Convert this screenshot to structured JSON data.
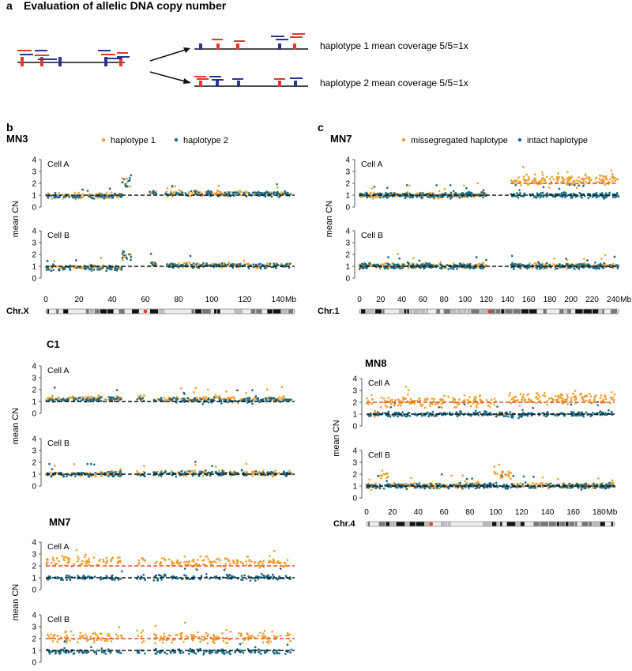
{
  "title": "Evaluation of allelic DNA copy number",
  "panels": {
    "a": "a",
    "b": "b",
    "c": "c"
  },
  "colors": {
    "orange": "#f0a030",
    "teal": "#1c6b86",
    "red": "#e03a2a",
    "blue": "#2b3590",
    "dash_black": "#111111",
    "dash_red": "#e0502a"
  },
  "schematic": {
    "haplotype1_text": "haplotype 1 mean coverage  5/5=1x",
    "haplotype2_text": "haplotype 2 mean coverage  5/5=1x"
  },
  "legends": {
    "b": [
      "haplotype 1",
      "haplotype 2"
    ],
    "c": [
      "missegregated haplotype",
      "intact haplotype"
    ]
  },
  "chart_data": [
    {
      "type": "scatter",
      "panel": "b",
      "sample": "MN3",
      "chromosome": "Chr.X",
      "xlabel": "Mb",
      "ylabel": "mean CN",
      "xlim": [
        0,
        150
      ],
      "xticks": [
        0,
        20,
        40,
        60,
        80,
        100,
        120,
        140
      ],
      "yticks": [
        0,
        1,
        2,
        3,
        4
      ],
      "ylim": [
        0,
        4
      ],
      "cells": [
        {
          "name": "Cell A",
          "reference_lines": [
            {
              "y": 1,
              "color": "black"
            }
          ],
          "series": [
            {
              "name": "haplotype 1",
              "segments": [
                [
                  0,
                  46,
                  0.95
                ],
                [
                  46,
                  52,
                  2.0
                ],
                [
                  62,
                  67,
                  1.2
                ],
                [
                  72,
                  148,
                  1.15
                ]
              ]
            },
            {
              "name": "haplotype 2",
              "segments": [
                [
                  0,
                  46,
                  0.9
                ],
                [
                  46,
                  52,
                  2.1
                ],
                [
                  62,
                  67,
                  1.2
                ],
                [
                  72,
                  148,
                  1.1
                ]
              ]
            }
          ]
        },
        {
          "name": "Cell B",
          "reference_lines": [
            {
              "y": 1,
              "color": "black"
            }
          ],
          "series": [
            {
              "name": "haplotype 1",
              "segments": [
                [
                  0,
                  46,
                  0.9
                ],
                [
                  46,
                  52,
                  1.9
                ],
                [
                  62,
                  67,
                  1.2
                ],
                [
                  72,
                  148,
                  1.1
                ]
              ]
            },
            {
              "name": "haplotype 2",
              "segments": [
                [
                  0,
                  46,
                  0.85
                ],
                [
                  46,
                  52,
                  1.9
                ],
                [
                  62,
                  67,
                  1.2
                ],
                [
                  72,
                  148,
                  1.05
                ]
              ]
            }
          ]
        }
      ]
    },
    {
      "type": "scatter",
      "panel": "b",
      "sample": "C1",
      "chromosome": "Chr.X",
      "xlabel": "Mb",
      "ylabel": "mean CN",
      "xlim": [
        0,
        150
      ],
      "yticks": [
        0,
        1,
        2,
        3,
        4
      ],
      "ylim": [
        0,
        4
      ],
      "cells": [
        {
          "name": "Cell A",
          "reference_lines": [
            {
              "y": 1,
              "color": "black"
            }
          ],
          "series": [
            {
              "name": "haplotype 1",
              "segments": [
                [
                  0,
                  46,
                  1.3
                ],
                [
                  55,
                  60,
                  1.3
                ],
                [
                  65,
                  148,
                  1.2
                ]
              ]
            },
            {
              "name": "haplotype 2",
              "segments": [
                [
                  0,
                  46,
                  1.2
                ],
                [
                  55,
                  60,
                  1.2
                ],
                [
                  65,
                  148,
                  1.1
                ]
              ]
            }
          ]
        },
        {
          "name": "Cell B",
          "reference_lines": [
            {
              "y": 1,
              "color": "black"
            }
          ],
          "series": [
            {
              "name": "haplotype 1",
              "segments": [
                [
                  0,
                  46,
                  1.0
                ],
                [
                  55,
                  60,
                  1.1
                ],
                [
                  65,
                  148,
                  1.1
                ]
              ]
            },
            {
              "name": "haplotype 2",
              "segments": [
                [
                  0,
                  46,
                  1.0
                ],
                [
                  55,
                  60,
                  1.0
                ],
                [
                  65,
                  148,
                  1.05
                ]
              ]
            }
          ]
        }
      ]
    },
    {
      "type": "scatter",
      "panel": "b",
      "sample": "MN7",
      "chromosome": "Chr.X",
      "xlabel": "Mb",
      "ylabel": "mean CN",
      "xlim": [
        0,
        150
      ],
      "yticks": [
        0,
        1,
        2,
        3,
        4
      ],
      "ylim": [
        0,
        4
      ],
      "cells": [
        {
          "name": "Cell A",
          "reference_lines": [
            {
              "y": 2,
              "color": "red"
            },
            {
              "y": 1,
              "color": "black"
            }
          ],
          "series": [
            {
              "name": "haplotype 1",
              "segments": [
                [
                  0,
                  46,
                  2.4
                ],
                [
                  55,
                  60,
                  2.4
                ],
                [
                  65,
                  148,
                  2.3
                ]
              ]
            },
            {
              "name": "haplotype 2",
              "segments": [
                [
                  0,
                  46,
                  1.0
                ],
                [
                  55,
                  60,
                  1.0
                ],
                [
                  65,
                  148,
                  1.0
                ]
              ]
            }
          ]
        },
        {
          "name": "Cell B",
          "reference_lines": [
            {
              "y": 2,
              "color": "red"
            },
            {
              "y": 1,
              "color": "black"
            }
          ],
          "series": [
            {
              "name": "haplotype 1",
              "segments": [
                [
                  0,
                  46,
                  2.1
                ],
                [
                  55,
                  60,
                  2.1
                ],
                [
                  65,
                  148,
                  2.1
                ]
              ]
            },
            {
              "name": "haplotype 2",
              "segments": [
                [
                  0,
                  46,
                  0.9
                ],
                [
                  55,
                  60,
                  0.9
                ],
                [
                  65,
                  148,
                  0.9
                ]
              ]
            }
          ]
        }
      ]
    },
    {
      "type": "scatter",
      "panel": "c",
      "sample": "MN7",
      "chromosome": "Chr.1",
      "xlabel": "Mb",
      "ylabel": "mean CN",
      "xlim": [
        0,
        245
      ],
      "xticks": [
        0,
        20,
        40,
        60,
        80,
        100,
        120,
        140,
        160,
        180,
        200,
        220,
        240
      ],
      "yticks": [
        0,
        1,
        2,
        3,
        4
      ],
      "ylim": [
        0,
        4
      ],
      "cells": [
        {
          "name": "Cell A",
          "reference_lines": [
            {
              "y": 1,
              "color": "black",
              "x": [
                0,
                245
              ]
            },
            {
              "y": 2,
              "color": "red",
              "x": [
                143,
                245
              ]
            }
          ],
          "series": [
            {
              "name": "missegregated haplotype",
              "segments": [
                [
                  0,
                  120,
                  1.0
                ],
                [
                  143,
                  245,
                  2.3
                ]
              ]
            },
            {
              "name": "intact haplotype",
              "segments": [
                [
                  0,
                  120,
                  1.0
                ],
                [
                  143,
                  245,
                  1.0
                ]
              ]
            }
          ]
        },
        {
          "name": "Cell B",
          "reference_lines": [
            {
              "y": 1,
              "color": "black"
            }
          ],
          "series": [
            {
              "name": "missegregated haplotype",
              "segments": [
                [
                  0,
                  120,
                  1.05
                ],
                [
                  143,
                  245,
                  1.05
                ]
              ]
            },
            {
              "name": "intact haplotype",
              "segments": [
                [
                  0,
                  120,
                  1.0
                ],
                [
                  143,
                  245,
                  1.0
                ]
              ]
            }
          ]
        }
      ]
    },
    {
      "type": "scatter",
      "panel": "c",
      "sample": "MN8",
      "chromosome": "Chr.4",
      "xlabel": "Mb",
      "ylabel": "mean CN",
      "xlim": [
        0,
        192
      ],
      "xticks": [
        0,
        20,
        40,
        60,
        80,
        100,
        120,
        140,
        160,
        180
      ],
      "yticks": [
        0,
        1,
        2,
        3,
        4
      ],
      "ylim": [
        0,
        4
      ],
      "cells": [
        {
          "name": "Cell A",
          "reference_lines": [
            {
              "y": 1,
              "color": "black"
            },
            {
              "y": 2,
              "color": "red"
            }
          ],
          "series": [
            {
              "name": "missegregated haplotype",
              "segments": [
                [
                  0,
                  5,
                  2.0
                ],
                [
                  5,
                  10,
                  1.0
                ],
                [
                  10,
                  100,
                  2.05
                ],
                [
                  100,
                  110,
                  1.0
                ],
                [
                  110,
                  192,
                  2.3
                ]
              ]
            },
            {
              "name": "intact haplotype",
              "segments": [
                [
                  0,
                  192,
                  1.0
                ]
              ]
            }
          ]
        },
        {
          "name": "Cell B",
          "reference_lines": [
            {
              "y": 1,
              "color": "black"
            }
          ],
          "series": [
            {
              "name": "missegregated haplotype",
              "segments": [
                [
                  0,
                  10,
                  1.0
                ],
                [
                  10,
                  17,
                  1.9
                ],
                [
                  17,
                  97,
                  1.05
                ],
                [
                  97,
                  112,
                  2.0
                ],
                [
                  112,
                  192,
                  1.05
                ]
              ]
            },
            {
              "name": "intact haplotype",
              "segments": [
                [
                  0,
                  192,
                  1.0
                ]
              ]
            }
          ]
        }
      ]
    }
  ]
}
